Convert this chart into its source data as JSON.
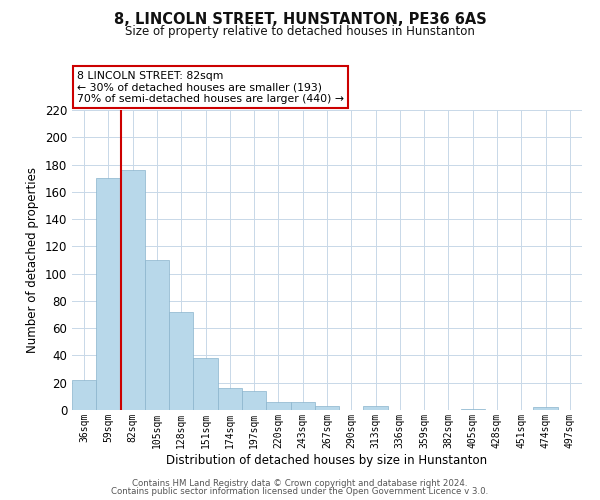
{
  "title": "8, LINCOLN STREET, HUNSTANTON, PE36 6AS",
  "subtitle": "Size of property relative to detached houses in Hunstanton",
  "xlabel": "Distribution of detached houses by size in Hunstanton",
  "ylabel": "Number of detached properties",
  "bin_labels": [
    "36sqm",
    "59sqm",
    "82sqm",
    "105sqm",
    "128sqm",
    "151sqm",
    "174sqm",
    "197sqm",
    "220sqm",
    "243sqm",
    "267sqm",
    "290sqm",
    "313sqm",
    "336sqm",
    "359sqm",
    "382sqm",
    "405sqm",
    "428sqm",
    "451sqm",
    "474sqm",
    "497sqm"
  ],
  "bar_values": [
    22,
    170,
    176,
    110,
    72,
    38,
    16,
    14,
    6,
    6,
    3,
    0,
    3,
    0,
    0,
    0,
    1,
    0,
    0,
    2,
    0
  ],
  "bar_color": "#b8d8ea",
  "bar_edge_color": "#8ab4cc",
  "highlight_bar_index": 2,
  "highlight_color": "#cc0000",
  "ylim": [
    0,
    220
  ],
  "yticks": [
    0,
    20,
    40,
    60,
    80,
    100,
    120,
    140,
    160,
    180,
    200,
    220
  ],
  "annotation_lines": [
    "8 LINCOLN STREET: 82sqm",
    "← 30% of detached houses are smaller (193)",
    "70% of semi-detached houses are larger (440) →"
  ],
  "footer_lines": [
    "Contains HM Land Registry data © Crown copyright and database right 2024.",
    "Contains public sector information licensed under the Open Government Licence v 3.0."
  ],
  "background_color": "#ffffff",
  "grid_color": "#c8d8e8"
}
